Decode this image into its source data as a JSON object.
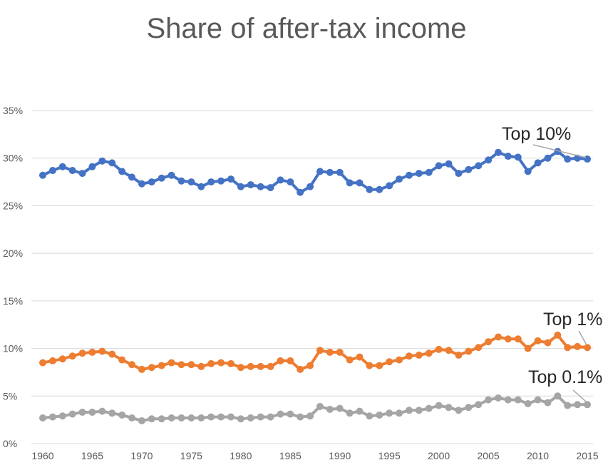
{
  "chart_data": {
    "type": "line",
    "title": "Share of after-tax income",
    "xlabel": "",
    "ylabel": "",
    "ylim": [
      0,
      35
    ],
    "xlim": [
      1960,
      2015
    ],
    "grid": true,
    "x_ticks": [
      "1960",
      "1965",
      "1970",
      "1975",
      "1980",
      "1985",
      "1990",
      "1995",
      "2000",
      "2005",
      "2010",
      "2015"
    ],
    "y_ticks": [
      "0%",
      "5%",
      "10%",
      "15%",
      "20%",
      "25%",
      "30%",
      "35%"
    ],
    "x": [
      1960,
      1961,
      1962,
      1963,
      1964,
      1965,
      1966,
      1967,
      1968,
      1969,
      1970,
      1971,
      1972,
      1973,
      1974,
      1975,
      1976,
      1977,
      1978,
      1979,
      1980,
      1981,
      1982,
      1983,
      1984,
      1985,
      1986,
      1987,
      1988,
      1989,
      1990,
      1991,
      1992,
      1993,
      1994,
      1995,
      1996,
      1997,
      1998,
      1999,
      2000,
      2001,
      2002,
      2003,
      2004,
      2005,
      2006,
      2007,
      2008,
      2009,
      2010,
      2011,
      2012,
      2013,
      2014,
      2015
    ],
    "series": [
      {
        "name": "Top 10%",
        "color": "#4472c4",
        "values": [
          28.2,
          28.7,
          29.1,
          28.7,
          28.4,
          29.1,
          29.7,
          29.5,
          28.6,
          28.0,
          27.3,
          27.5,
          27.9,
          28.2,
          27.6,
          27.5,
          27.0,
          27.5,
          27.6,
          27.8,
          27.0,
          27.2,
          27.0,
          26.9,
          27.7,
          27.5,
          26.4,
          27.0,
          28.6,
          28.5,
          28.5,
          27.4,
          27.4,
          26.7,
          26.7,
          27.1,
          27.8,
          28.2,
          28.4,
          28.5,
          29.2,
          29.4,
          28.4,
          28.8,
          29.2,
          29.8,
          30.6,
          30.2,
          30.1,
          28.6,
          29.5,
          30.0,
          30.7,
          29.9,
          30.0,
          29.9
        ]
      },
      {
        "name": "Top 1%",
        "color": "#ed7d31",
        "values": [
          8.5,
          8.7,
          8.9,
          9.2,
          9.5,
          9.6,
          9.7,
          9.4,
          8.8,
          8.3,
          7.8,
          8.0,
          8.2,
          8.5,
          8.3,
          8.3,
          8.1,
          8.4,
          8.5,
          8.4,
          8.0,
          8.1,
          8.1,
          8.1,
          8.7,
          8.7,
          7.8,
          8.2,
          9.8,
          9.6,
          9.6,
          8.8,
          9.1,
          8.2,
          8.2,
          8.6,
          8.8,
          9.2,
          9.3,
          9.5,
          9.9,
          9.8,
          9.3,
          9.7,
          10.1,
          10.7,
          11.2,
          11.0,
          11.0,
          10.0,
          10.8,
          10.6,
          11.4,
          10.1,
          10.2,
          10.1
        ]
      },
      {
        "name": "Top 0.1%",
        "color": "#a5a5a5",
        "values": [
          2.7,
          2.8,
          2.9,
          3.1,
          3.3,
          3.3,
          3.4,
          3.2,
          3.0,
          2.7,
          2.4,
          2.6,
          2.6,
          2.7,
          2.7,
          2.7,
          2.7,
          2.8,
          2.8,
          2.8,
          2.6,
          2.7,
          2.8,
          2.8,
          3.1,
          3.1,
          2.8,
          2.9,
          3.9,
          3.6,
          3.7,
          3.2,
          3.4,
          2.9,
          3.0,
          3.2,
          3.2,
          3.5,
          3.5,
          3.7,
          4.0,
          3.8,
          3.5,
          3.8,
          4.1,
          4.6,
          4.8,
          4.6,
          4.6,
          4.2,
          4.6,
          4.3,
          5.0,
          4.0,
          4.1,
          4.1
        ]
      }
    ]
  }
}
